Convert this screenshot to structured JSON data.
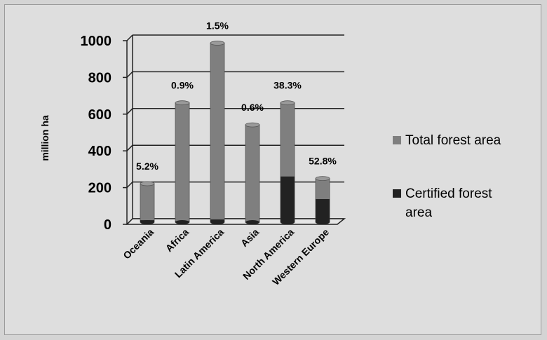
{
  "chart_data": {
    "type": "bar",
    "ylabel": "million ha",
    "ylim": [
      0,
      1000
    ],
    "yticks": [
      "0",
      "200",
      "400",
      "600",
      "800",
      "1000"
    ],
    "categories": [
      "Oceania",
      "Africa",
      "Latin America",
      "Asia",
      "North America",
      "Western Europe"
    ],
    "series": [
      {
        "name": "Total forest area",
        "values": [
          210,
          650,
          975,
          530,
          650,
          238
        ],
        "color": "#7f7f7f"
      },
      {
        "name": "Certified forest area",
        "values": [
          11,
          6,
          15,
          3,
          249,
          126
        ],
        "color": "#222222"
      }
    ],
    "annotations": [
      "5.2%",
      "0.9%",
      "1.5%",
      "0.6%",
      "38.3%",
      "52.8%"
    ],
    "legend_position": "right",
    "grid": true,
    "style": "3d-cylinder"
  },
  "legend": {
    "total": "Total forest area",
    "certified_line1": "Certified forest",
    "certified_line2": "area"
  }
}
